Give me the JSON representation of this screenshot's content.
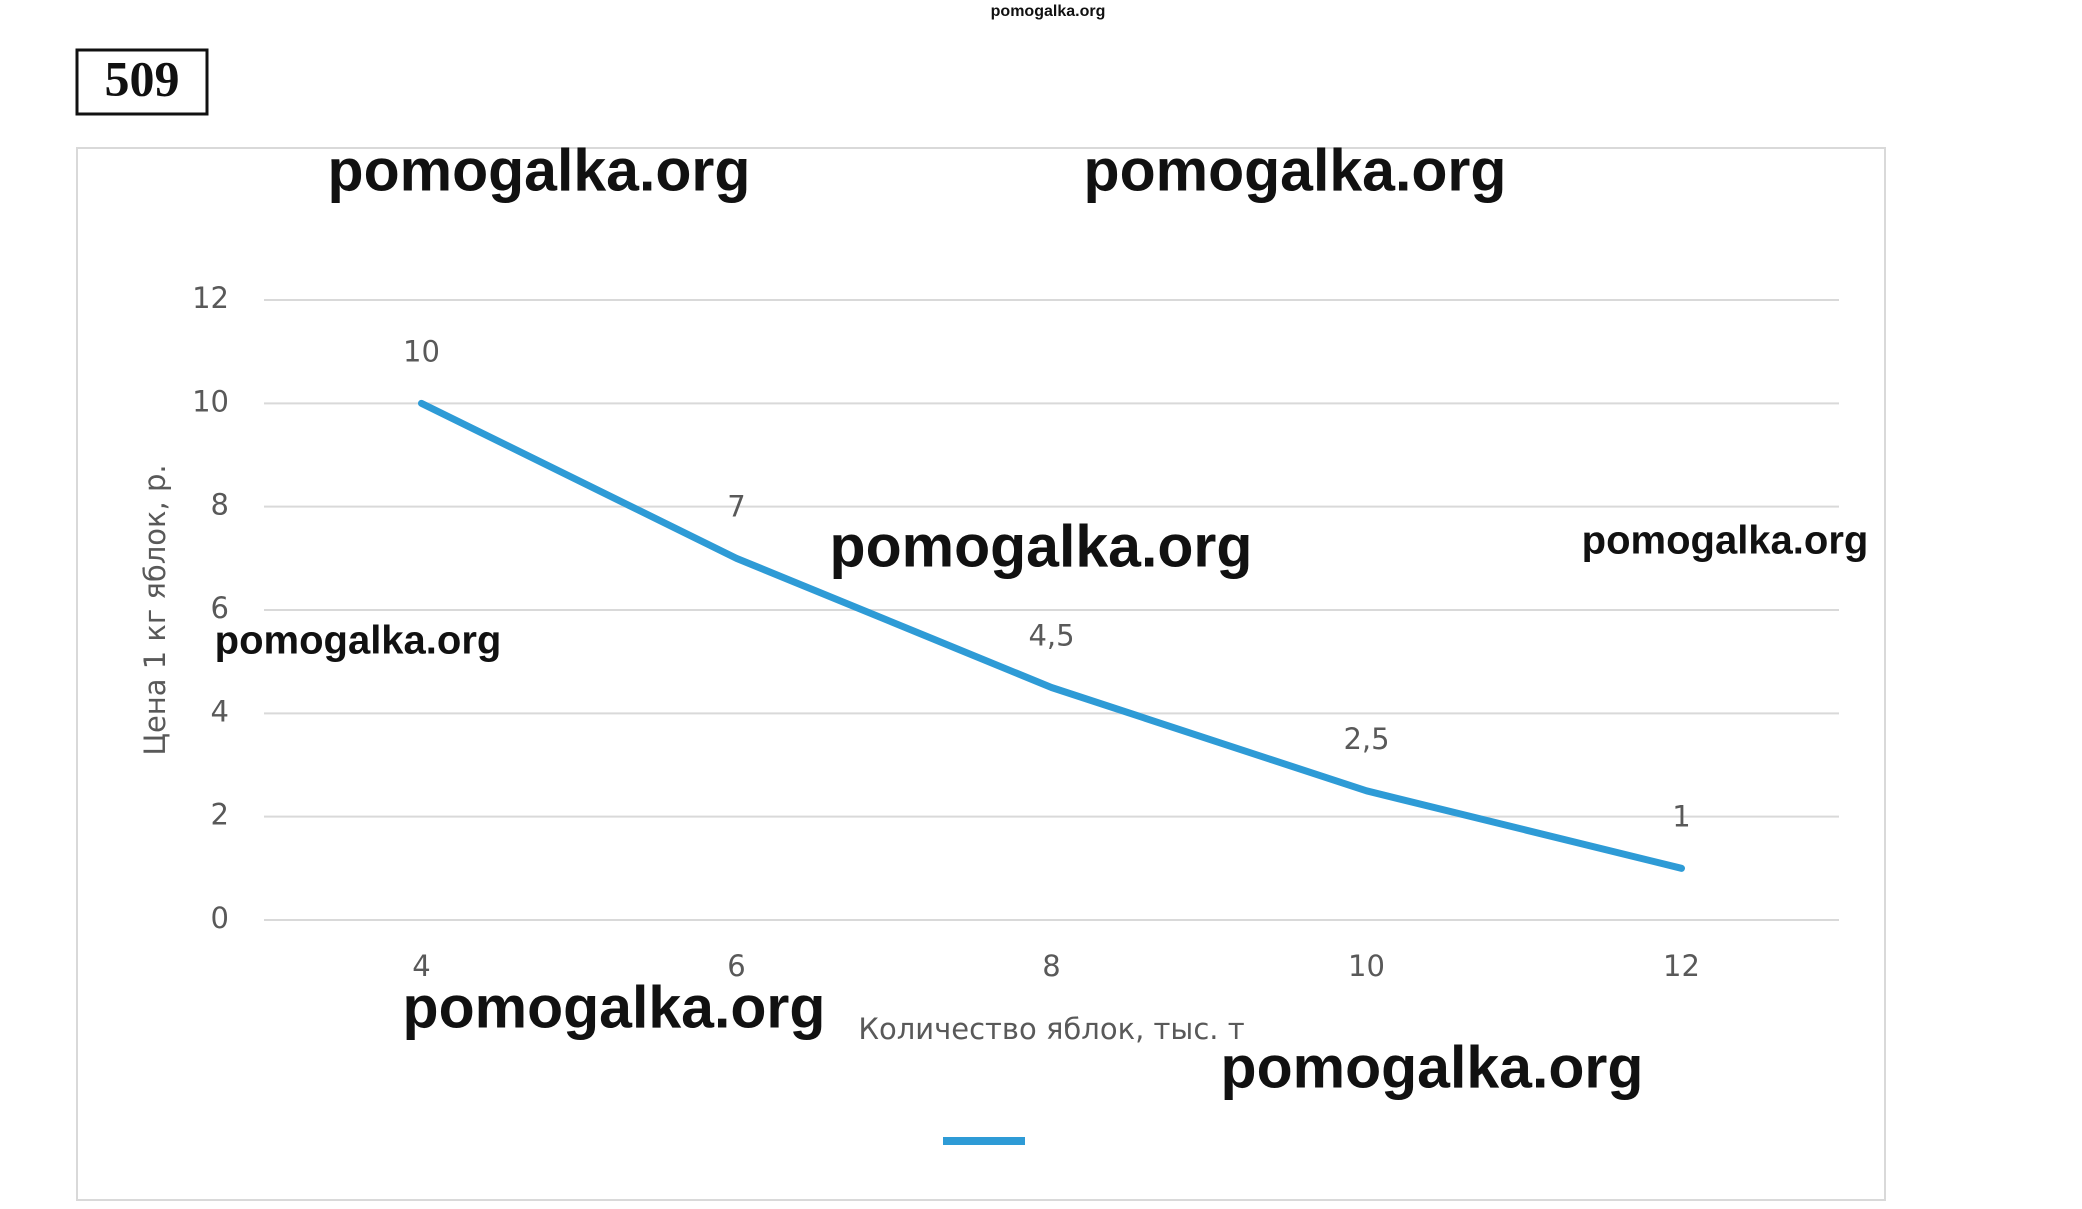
{
  "problem_number": "509",
  "watermarks": [
    "pomogalka.org",
    "pomogalka.org",
    "pomogalka.org",
    "pomogalka.org",
    "pomogalka.org",
    "pomogalka.org",
    "pomogalka.org",
    "pomogalka.org"
  ],
  "chart_data": {
    "type": "line",
    "categories": [
      "4",
      "6",
      "8",
      "10",
      "12"
    ],
    "values": [
      10,
      7,
      4.5,
      2.5,
      1
    ],
    "value_labels": [
      "10",
      "7",
      "4,5",
      "2,5",
      "1"
    ],
    "color": "#2e9bd6",
    "ylim": [
      0,
      12
    ],
    "yticks": [
      0,
      2,
      4,
      6,
      8,
      10,
      12
    ],
    "grid": true,
    "x_label": "Количество яблок, тыс. т",
    "y_label": "Цена 1 кг яблок, р."
  }
}
